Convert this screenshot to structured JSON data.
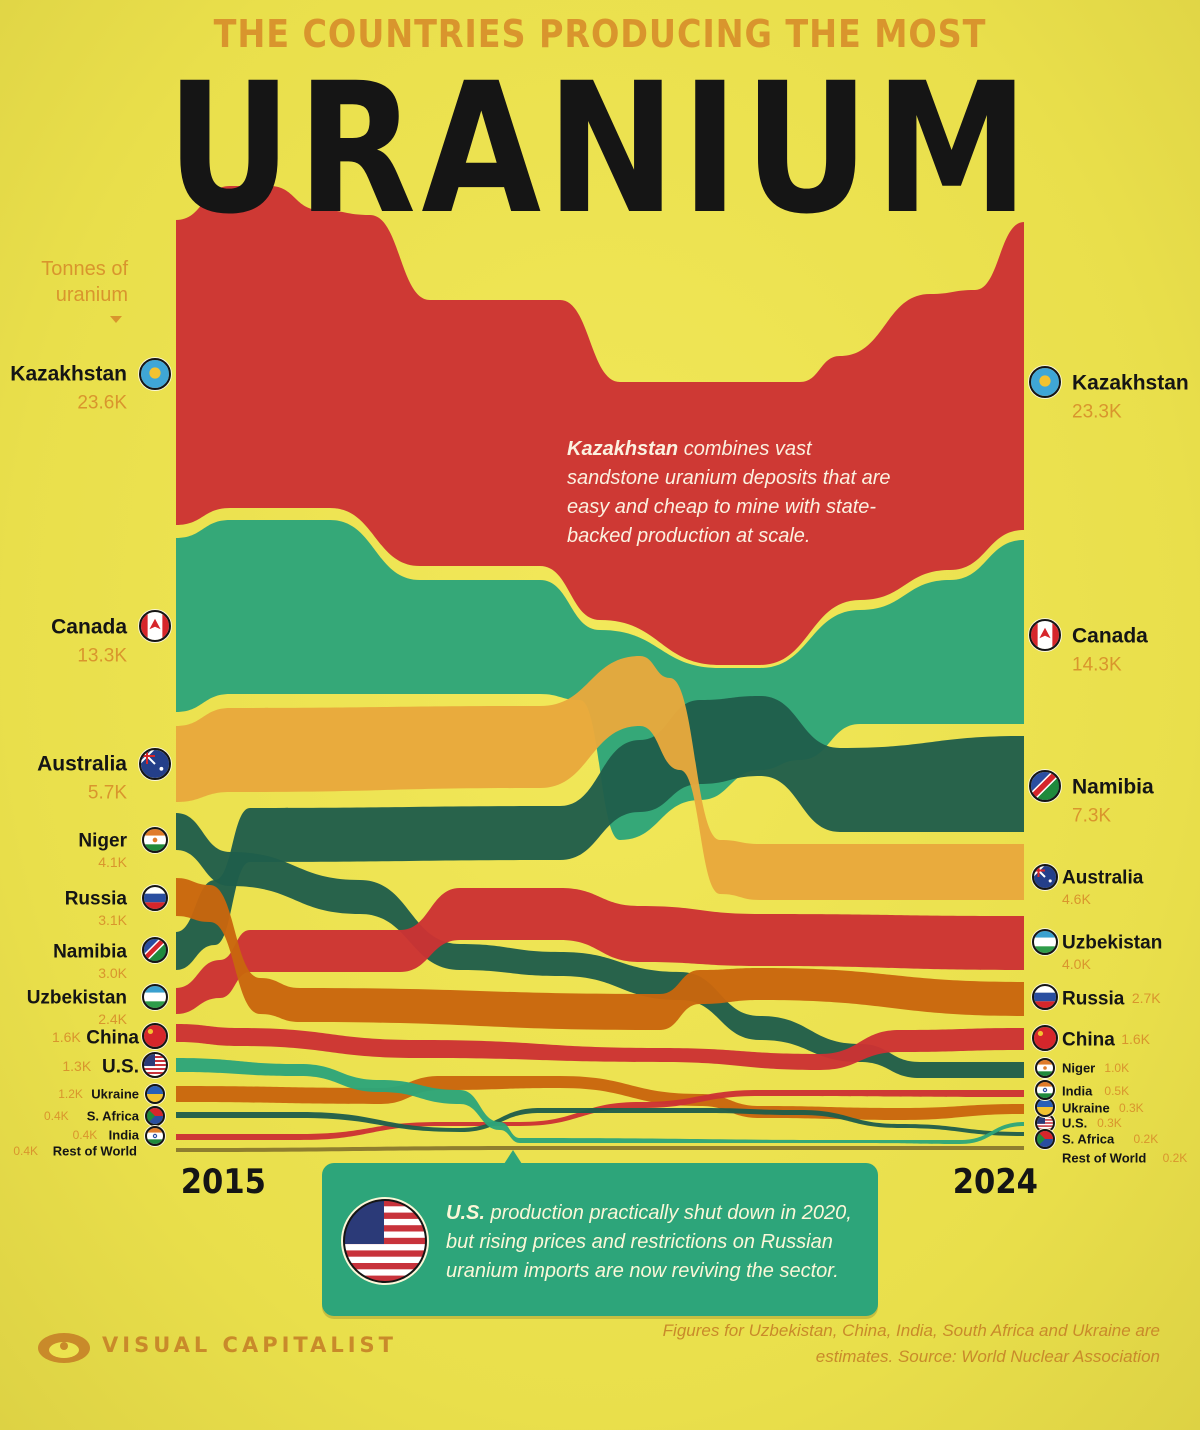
{
  "title": {
    "top": "THE COUNTRIES PRODUCING THE MOST",
    "main": "URANIUM"
  },
  "unit_note": "Tonnes of uranium",
  "colors": {
    "background": "#ece34f",
    "kazakhstan": "#cc3233",
    "canada": "#2da57a",
    "australia": "#e8a93c",
    "namibia": "#1f5e4b",
    "russia": "#c9660e",
    "text_dark": "#151515",
    "accent": "#d9952d"
  },
  "annotations": {
    "kazakhstan_bold": "Kazakhstan",
    "kazakhstan_rest": "combines vast sandstone uranium deposits that are easy and cheap to mine with state-backed production at scale.",
    "us_bold": "U.S.",
    "us_rest": "production practically shut down in 2020, but rising prices and restrictions on Russian uranium imports are now reviving the sector."
  },
  "footer": {
    "brand": "VISUAL CAPITALIST",
    "note": "Figures for Uzbekistan, China, India, South Africa and Ukraine are estimates. Source: World Nuclear Association"
  },
  "chart_data": {
    "type": "area",
    "subtype": "ranked stream (bump) chart",
    "unit": "tonnes of uranium",
    "x": [
      2015,
      2024
    ],
    "x_tick_labels": [
      "2015",
      "2024"
    ],
    "series": [
      {
        "name": "Kazakhstan",
        "label_2015": "23.6K",
        "label_2024": "23.3K",
        "values": [
          23600,
          23300
        ],
        "rank_2015": 1,
        "rank_2024": 1,
        "flag": "kazakhstan-flag-icon"
      },
      {
        "name": "Canada",
        "label_2015": "13.3K",
        "label_2024": "14.3K",
        "values": [
          13300,
          14300
        ],
        "rank_2015": 2,
        "rank_2024": 2,
        "flag": "canada-flag-icon"
      },
      {
        "name": "Australia",
        "label_2015": "5.7K",
        "label_2024": "4.6K",
        "values": [
          5700,
          4600
        ],
        "rank_2015": 3,
        "rank_2024": 4,
        "flag": "australia-flag-icon"
      },
      {
        "name": "Niger",
        "label_2015": "4.1K",
        "label_2024": "1.0K",
        "values": [
          4100,
          1000
        ],
        "rank_2015": 4,
        "rank_2024": 8,
        "flag": "niger-flag-icon"
      },
      {
        "name": "Russia",
        "label_2015": "3.1K",
        "label_2024": "2.7K",
        "values": [
          3100,
          2700
        ],
        "rank_2015": 5,
        "rank_2024": 6,
        "flag": "russia-flag-icon"
      },
      {
        "name": "Namibia",
        "label_2015": "3.0K",
        "label_2024": "7.3K",
        "values": [
          3000,
          7300
        ],
        "rank_2015": 6,
        "rank_2024": 3,
        "flag": "namibia-flag-icon"
      },
      {
        "name": "Uzbekistan",
        "label_2015": "2.4K",
        "label_2024": "4.0K",
        "values": [
          2400,
          4000
        ],
        "rank_2015": 7,
        "rank_2024": 5,
        "flag": "uzbekistan-flag-icon"
      },
      {
        "name": "China",
        "label_2015": "1.6K",
        "label_2024": "1.6K",
        "values": [
          1600,
          1600
        ],
        "rank_2015": 8,
        "rank_2024": 7,
        "flag": "china-flag-icon"
      },
      {
        "name": "U.S.",
        "label_2015": "1.3K",
        "label_2024": "0.3K",
        "values": [
          1300,
          300
        ],
        "rank_2015": 9,
        "rank_2024": 11,
        "flag": "us-flag-icon"
      },
      {
        "name": "Ukraine",
        "label_2015": "1.2K",
        "label_2024": "0.3K",
        "values": [
          1200,
          300
        ],
        "rank_2015": 10,
        "rank_2024": 10,
        "flag": "ukraine-flag-icon"
      },
      {
        "name": "S. Africa",
        "label_2015": "0.4K",
        "label_2024": "0.2K",
        "values": [
          400,
          200
        ],
        "rank_2015": 11,
        "rank_2024": 12,
        "flag": "south-africa-flag-icon"
      },
      {
        "name": "India",
        "label_2015": "0.4K",
        "label_2024": "0.5K",
        "values": [
          400,
          500
        ],
        "rank_2015": 12,
        "rank_2024": 9,
        "flag": "india-flag-icon"
      },
      {
        "name": "Rest of World",
        "label_2015": "0.4K",
        "label_2024": "0.2K",
        "values": [
          400,
          200
        ],
        "rank_2015": 13,
        "rank_2024": 13,
        "flag": ""
      }
    ],
    "grid": false,
    "legend": "direct labels left and right"
  }
}
